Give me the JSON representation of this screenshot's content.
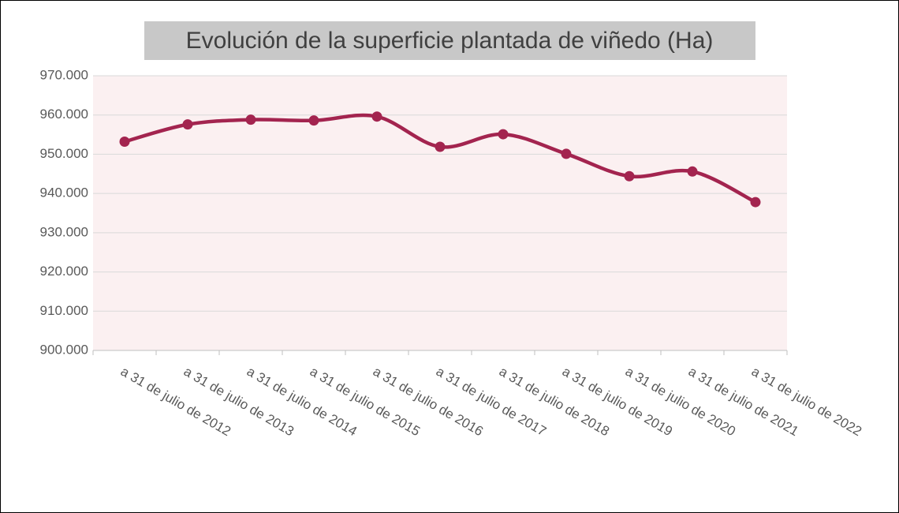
{
  "chart_data": {
    "type": "line",
    "title": "Evolución de la superficie plantada de viñedo (Ha)",
    "categories": [
      "a 31 de julio de 2012",
      "a 31 de julio de 2013",
      "a 31 de julio de 2014",
      "a 31 de julio de 2015",
      "a 31 de julio de 2016",
      "a 31 de julio de 2017",
      "a 31 de julio de 2018",
      "a 31 de julio de 2019",
      "a 31 de julio de 2020",
      "a 31 de julio de 2021",
      "a 31 de julio de 2022"
    ],
    "values": [
      953200,
      957600,
      958800,
      958600,
      959600,
      951900,
      955100,
      950100,
      944400,
      945600,
      937800
    ],
    "color": "#a3244f",
    "ylim": [
      900000,
      970000
    ],
    "yticks": [
      {
        "value": 900000,
        "label": "900.000"
      },
      {
        "value": 910000,
        "label": "910.000"
      },
      {
        "value": 920000,
        "label": "920.000"
      },
      {
        "value": 930000,
        "label": "930.000"
      },
      {
        "value": 940000,
        "label": "940.000"
      },
      {
        "value": 950000,
        "label": "950.000"
      },
      {
        "value": 960000,
        "label": "960.000"
      },
      {
        "value": 970000,
        "label": "970.000"
      }
    ],
    "grid": true,
    "smooth": true
  }
}
